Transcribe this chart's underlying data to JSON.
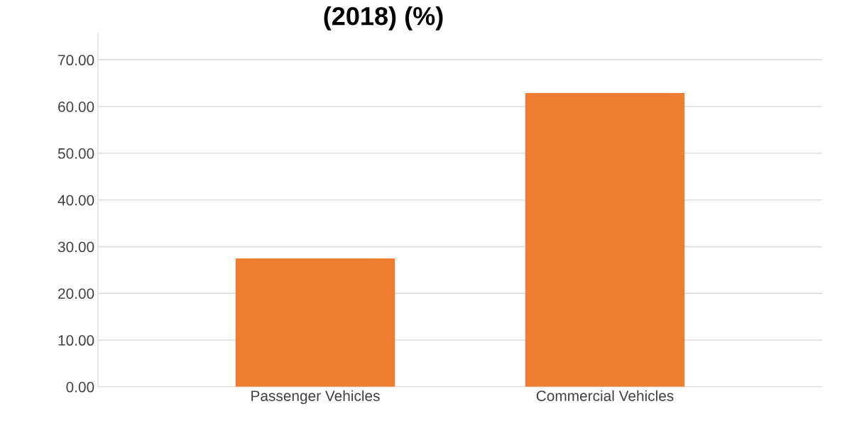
{
  "chart_data": {
    "type": "bar",
    "title": "(2018) (%)",
    "categories": [
      "Passenger Vehicles",
      "Commercial Vehicles"
    ],
    "values": [
      27.5,
      62.9
    ],
    "color": "#ed7d31",
    "ylim": [
      0,
      75.7
    ],
    "yticks": [
      {
        "value": 0,
        "label": "0.00"
      },
      {
        "value": 10,
        "label": "10.00"
      },
      {
        "value": 20,
        "label": "20.00"
      },
      {
        "value": 30,
        "label": "30.00"
      },
      {
        "value": 40,
        "label": "40.00"
      },
      {
        "value": 50,
        "label": "50.00"
      },
      {
        "value": 60,
        "label": "60.00"
      },
      {
        "value": 70,
        "label": "70.00"
      }
    ],
    "grid": "y"
  }
}
